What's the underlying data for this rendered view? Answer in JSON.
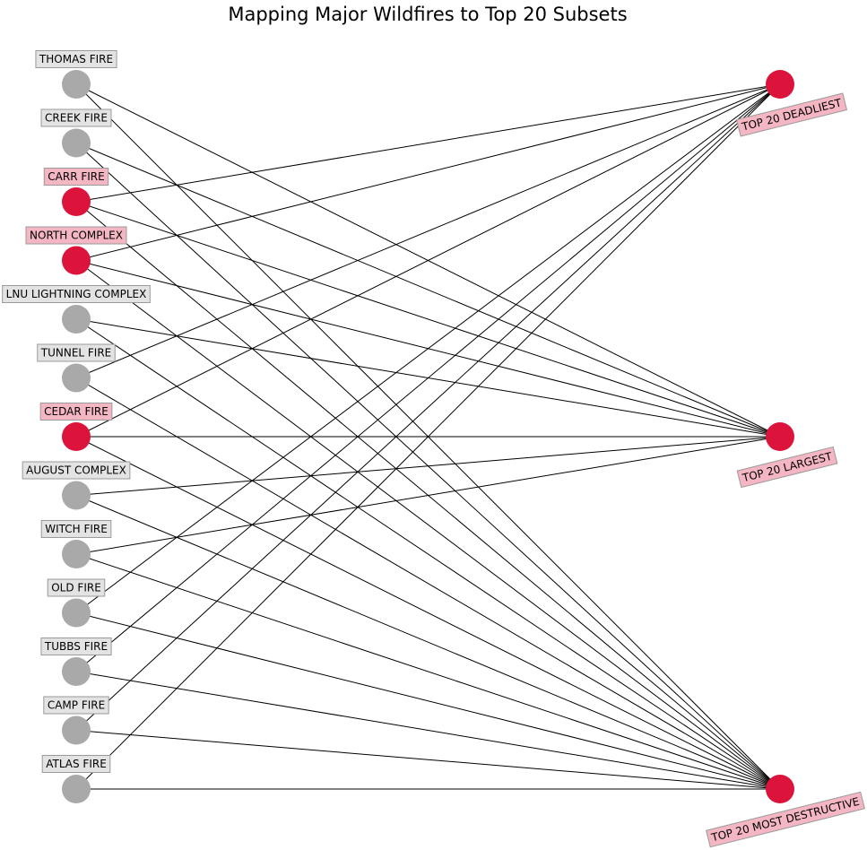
{
  "title": "Mapping Major Wildfires to Top 20 Subsets",
  "colors": {
    "highlight_node": "#dc143c",
    "default_node": "#a9a9a9",
    "highlight_label_bg": "#f4b6c2",
    "default_label_bg": "#e3e3e3",
    "label_border": "#9a9a9a",
    "edge": "#000000"
  },
  "fires": [
    {
      "id": "thomas",
      "label": "THOMAS FIRE",
      "highlight": false
    },
    {
      "id": "creek",
      "label": "CREEK FIRE",
      "highlight": false
    },
    {
      "id": "carr",
      "label": "CARR FIRE",
      "highlight": true
    },
    {
      "id": "north-complex",
      "label": "NORTH COMPLEX",
      "highlight": true
    },
    {
      "id": "lnu-lightning-complex",
      "label": "LNU LIGHTNING COMPLEX",
      "highlight": false
    },
    {
      "id": "tunnel",
      "label": "TUNNEL FIRE",
      "highlight": false
    },
    {
      "id": "cedar",
      "label": "CEDAR FIRE",
      "highlight": true
    },
    {
      "id": "august-complex",
      "label": "AUGUST COMPLEX",
      "highlight": false
    },
    {
      "id": "witch",
      "label": "WITCH FIRE",
      "highlight": false
    },
    {
      "id": "old",
      "label": "OLD FIRE",
      "highlight": false
    },
    {
      "id": "tubbs",
      "label": "TUBBS FIRE",
      "highlight": false
    },
    {
      "id": "camp",
      "label": "CAMP FIRE",
      "highlight": false
    },
    {
      "id": "atlas",
      "label": "ATLAS FIRE",
      "highlight": false
    }
  ],
  "subsets": [
    {
      "id": "deadliest",
      "label": "TOP 20 DEADLIEST"
    },
    {
      "id": "largest",
      "label": "TOP 20 LARGEST"
    },
    {
      "id": "destructive",
      "label": "TOP 20 MOST DESTRUCTIVE"
    }
  ],
  "edges": [
    {
      "from": "thomas",
      "to": "largest"
    },
    {
      "from": "thomas",
      "to": "destructive"
    },
    {
      "from": "creek",
      "to": "largest"
    },
    {
      "from": "creek",
      "to": "destructive"
    },
    {
      "from": "carr",
      "to": "deadliest"
    },
    {
      "from": "carr",
      "to": "largest"
    },
    {
      "from": "carr",
      "to": "destructive"
    },
    {
      "from": "north-complex",
      "to": "deadliest"
    },
    {
      "from": "north-complex",
      "to": "largest"
    },
    {
      "from": "north-complex",
      "to": "destructive"
    },
    {
      "from": "lnu-lightning-complex",
      "to": "largest"
    },
    {
      "from": "lnu-lightning-complex",
      "to": "destructive"
    },
    {
      "from": "tunnel",
      "to": "deadliest"
    },
    {
      "from": "tunnel",
      "to": "destructive"
    },
    {
      "from": "cedar",
      "to": "deadliest"
    },
    {
      "from": "cedar",
      "to": "largest"
    },
    {
      "from": "cedar",
      "to": "destructive"
    },
    {
      "from": "august-complex",
      "to": "largest"
    },
    {
      "from": "august-complex",
      "to": "destructive"
    },
    {
      "from": "witch",
      "to": "largest"
    },
    {
      "from": "witch",
      "to": "destructive"
    },
    {
      "from": "old",
      "to": "deadliest"
    },
    {
      "from": "old",
      "to": "destructive"
    },
    {
      "from": "tubbs",
      "to": "deadliest"
    },
    {
      "from": "tubbs",
      "to": "destructive"
    },
    {
      "from": "camp",
      "to": "deadliest"
    },
    {
      "from": "camp",
      "to": "destructive"
    },
    {
      "from": "atlas",
      "to": "deadliest"
    },
    {
      "from": "atlas",
      "to": "destructive"
    }
  ]
}
